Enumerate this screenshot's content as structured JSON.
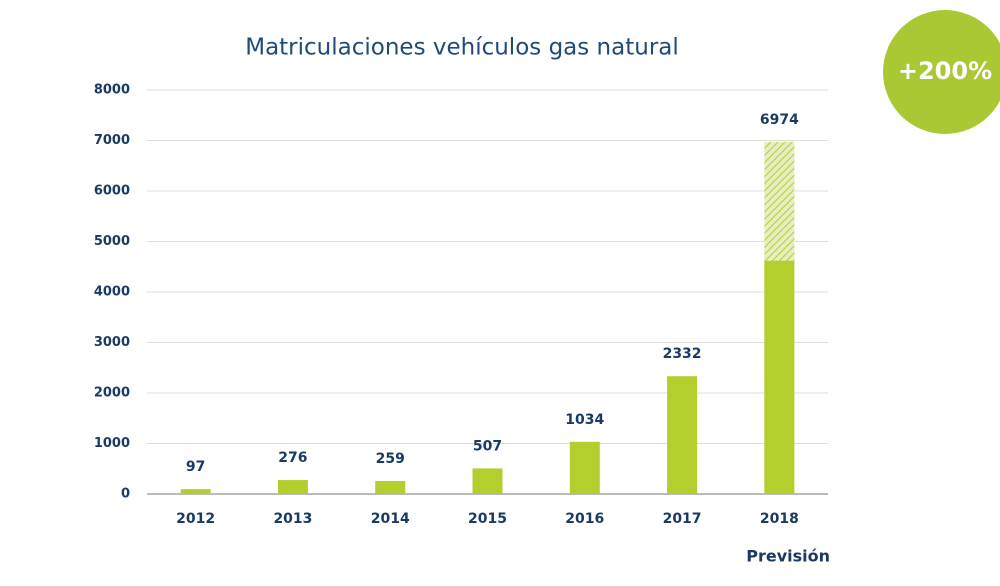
{
  "chart_data": {
    "type": "bar",
    "title": "Matriculaciones vehículos gas natural",
    "categories": [
      "2012",
      "2013",
      "2014",
      "2015",
      "2016",
      "2017",
      "2018"
    ],
    "values": [
      97,
      276,
      259,
      507,
      1034,
      2332,
      6974
    ],
    "solid_values": [
      null,
      null,
      null,
      null,
      null,
      null,
      4620
    ],
    "color": "#b3cf2e",
    "ylim": [
      0,
      8000
    ],
    "yticks": [
      0,
      1000,
      2000,
      3000,
      4000,
      5000,
      6000,
      7000,
      8000
    ],
    "grid": true,
    "annotations": {
      "badge": "+200%",
      "note": "Previsión"
    }
  }
}
